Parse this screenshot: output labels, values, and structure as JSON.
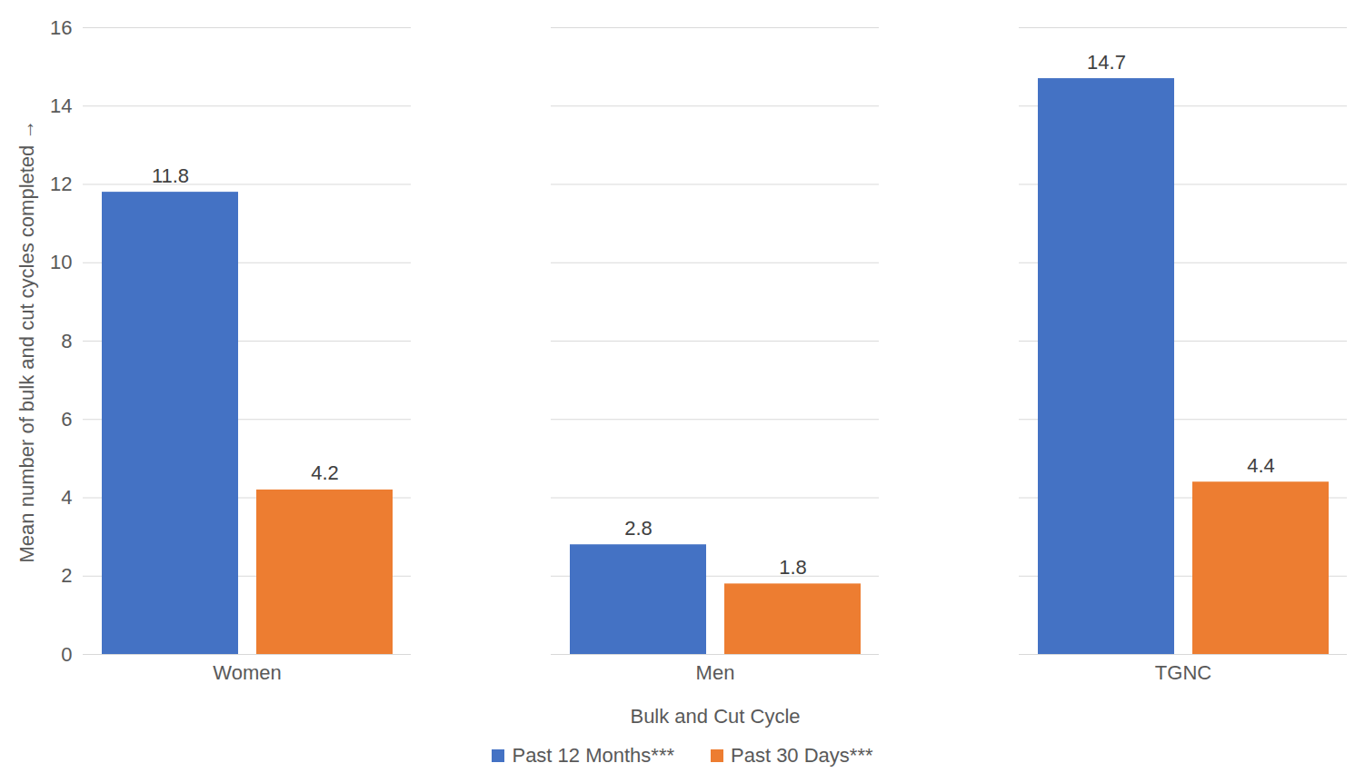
{
  "chart_data": {
    "type": "bar",
    "x_label": "Bulk and Cut Cycle",
    "y_label": "Mean number of bulk and cut cycles completed",
    "categories": [
      "Women",
      "Men",
      "TGNC"
    ],
    "series": [
      {
        "name": "Past 12 Months***",
        "color": "#4472c4",
        "values": [
          11.8,
          2.8,
          14.7
        ]
      },
      {
        "name": "Past 30 Days***",
        "color": "#ed7d31",
        "values": [
          4.2,
          1.8,
          4.4
        ]
      }
    ],
    "ylim": [
      0,
      16
    ],
    "yticks": [
      0,
      2,
      4,
      6,
      8,
      10,
      12,
      14,
      16
    ],
    "grid": true,
    "data_labels": true,
    "legend": "bottom"
  }
}
